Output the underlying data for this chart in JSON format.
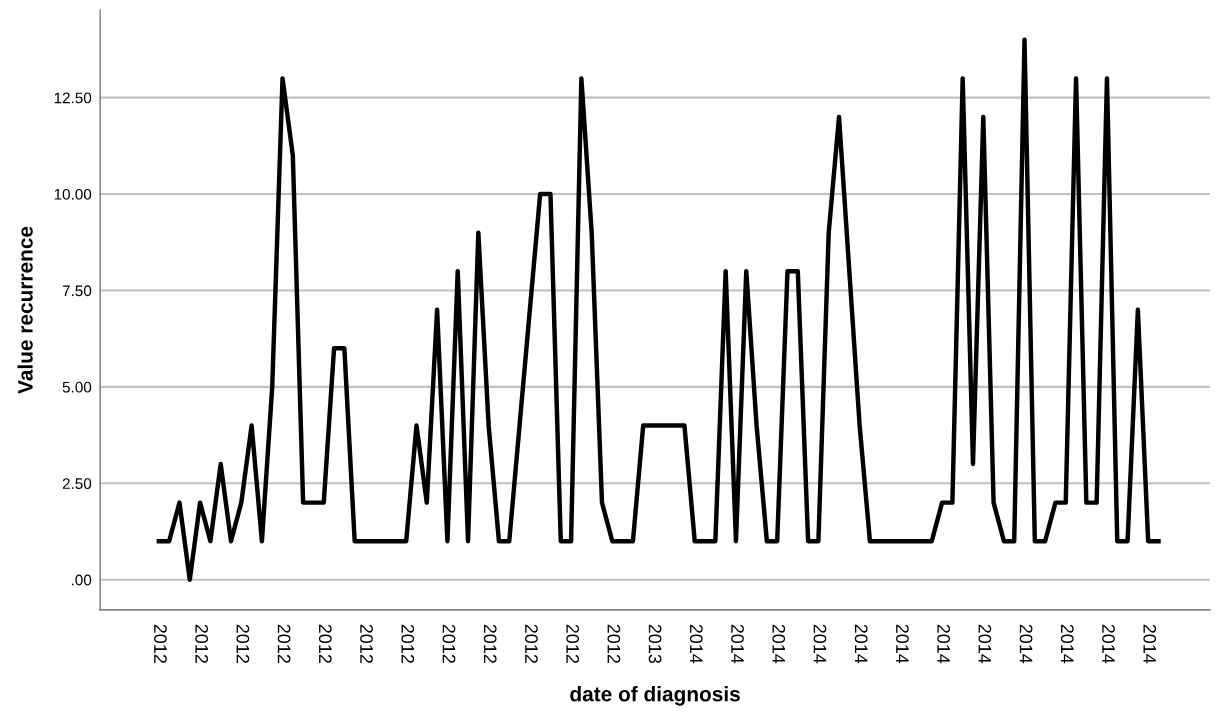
{
  "chart_data": {
    "type": "line",
    "xlabel": "date of diagnosis",
    "ylabel": "Value recurrence",
    "categories": [
      "2012",
      null,
      null,
      null,
      "2012",
      null,
      null,
      null,
      "2012",
      null,
      null,
      null,
      "2012",
      null,
      null,
      null,
      "2012",
      null,
      null,
      null,
      "2012",
      null,
      null,
      null,
      "2012",
      null,
      null,
      null,
      "2012",
      null,
      null,
      null,
      "2012",
      null,
      null,
      null,
      "2012",
      null,
      null,
      null,
      "2012",
      null,
      null,
      null,
      "2012",
      null,
      null,
      null,
      "2013",
      null,
      null,
      null,
      "2014",
      null,
      null,
      null,
      "2014",
      null,
      null,
      null,
      "2014",
      null,
      null,
      null,
      "2014",
      null,
      null,
      null,
      "2014",
      null,
      null,
      null,
      "2014",
      null,
      null,
      null,
      "2014",
      null,
      null,
      null,
      "2014",
      null,
      null,
      null,
      "2014",
      null,
      null,
      null,
      "2014",
      null,
      null,
      null,
      "2014",
      null,
      null,
      null,
      "2014",
      null
    ],
    "series": [
      {
        "color": "#000000",
        "values": [
          1,
          1,
          2,
          0,
          2,
          1,
          3,
          1,
          2,
          4,
          1,
          5,
          13,
          11,
          2,
          2,
          2,
          6,
          6,
          1,
          1,
          1,
          1,
          1,
          1,
          4,
          2,
          7,
          1,
          8,
          1,
          9,
          4,
          1,
          1,
          4,
          7,
          10,
          10,
          1,
          1,
          13,
          9,
          2,
          1,
          1,
          1,
          4,
          4,
          4,
          4,
          4,
          1,
          1,
          1,
          8,
          1,
          8,
          4,
          1,
          1,
          8,
          8,
          1,
          1,
          9,
          12,
          8,
          4,
          1,
          1,
          1,
          1,
          1,
          1,
          1,
          2,
          2,
          13,
          3,
          12,
          2,
          1,
          1,
          14,
          1,
          1,
          2,
          2,
          13,
          2,
          2,
          13,
          1,
          1,
          7,
          1,
          1
        ]
      }
    ],
    "ylim": [
      -0.78,
      14.77
    ],
    "yticks": [
      {
        "value": 0,
        "label": ".00"
      },
      {
        "value": 2.5,
        "label": "2.50"
      },
      {
        "value": 5,
        "label": "5.00"
      },
      {
        "value": 7.5,
        "label": "7.50"
      },
      {
        "value": 10,
        "label": "10.00"
      },
      {
        "value": 12.5,
        "label": "12.50"
      }
    ],
    "grid": "y",
    "marker": "none",
    "line_style": "solid"
  }
}
